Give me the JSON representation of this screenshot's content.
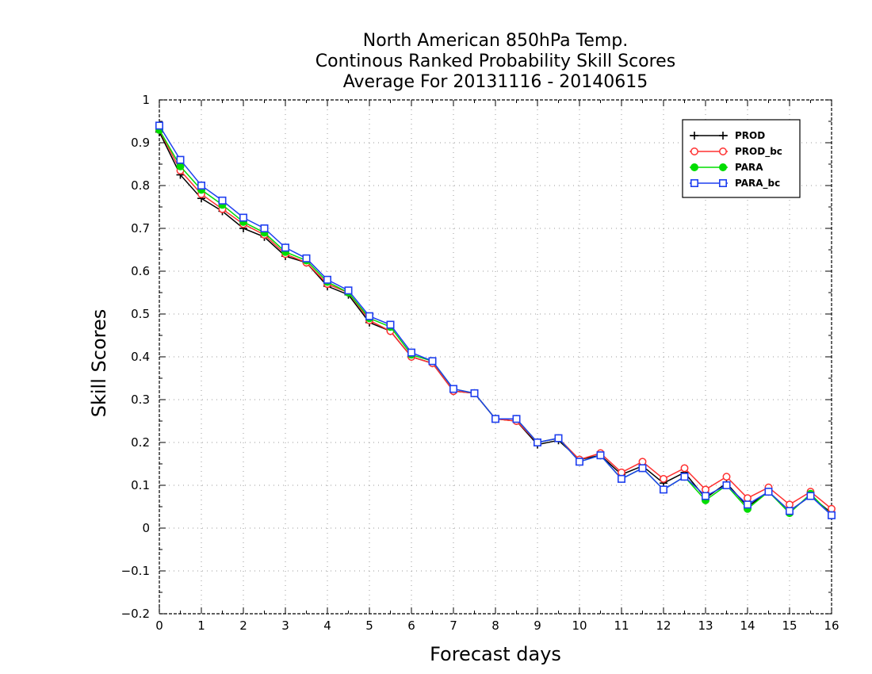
{
  "chart_data": {
    "type": "line",
    "title_lines": [
      "North American 850hPa Temp.",
      "Continous Ranked Probability Skill Scores",
      "Average For 20131116 - 20140615"
    ],
    "xlabel": "Forecast days",
    "ylabel": "Skill Scores",
    "xlim": [
      0,
      16
    ],
    "ylim": [
      -0.2,
      1
    ],
    "x_ticks": [
      0,
      1,
      2,
      3,
      4,
      5,
      6,
      7,
      8,
      9,
      10,
      11,
      12,
      13,
      14,
      15,
      16
    ],
    "y_ticks": [
      -0.2,
      -0.1,
      0,
      0.1,
      0.2,
      0.3,
      0.4,
      0.5,
      0.6,
      0.7,
      0.8,
      0.9,
      1
    ],
    "x_tick_labels": [
      "0",
      "1",
      "2",
      "3",
      "4",
      "5",
      "6",
      "7",
      "8",
      "9",
      "10",
      "11",
      "12",
      "13",
      "14",
      "15",
      "16"
    ],
    "y_tick_labels": [
      "−0.2",
      "−0.1",
      "0",
      "0.1",
      "0.2",
      "0.3",
      "0.4",
      "0.5",
      "0.6",
      "0.7",
      "0.8",
      "0.9",
      "1"
    ],
    "grid": true,
    "legend_position": "top-right",
    "x": [
      0,
      0.5,
      1,
      1.5,
      2,
      2.5,
      3,
      3.5,
      4,
      4.5,
      5,
      5.5,
      6,
      6.5,
      7,
      7.5,
      8,
      8.5,
      9,
      9.5,
      10,
      10.5,
      11,
      11.5,
      12,
      12.5,
      13,
      13.5,
      14,
      14.5,
      15,
      15.5,
      16
    ],
    "series": [
      {
        "name": "PROD",
        "color": "#000000",
        "marker": "plus",
        "values": [
          0.925,
          0.825,
          0.77,
          0.74,
          0.7,
          0.68,
          0.635,
          0.62,
          0.565,
          0.545,
          0.48,
          0.46,
          0.4,
          0.385,
          0.32,
          0.315,
          0.255,
          0.25,
          0.195,
          0.205,
          0.16,
          0.17,
          0.125,
          0.145,
          0.105,
          0.13,
          0.07,
          0.105,
          0.05,
          0.085,
          0.04,
          0.075,
          0.035
        ]
      },
      {
        "name": "PROD_bc",
        "color": "#ff3030",
        "marker": "circle-open",
        "values": [
          0.93,
          0.835,
          0.78,
          0.745,
          0.71,
          0.685,
          0.64,
          0.62,
          0.57,
          0.55,
          0.485,
          0.46,
          0.4,
          0.385,
          0.32,
          0.315,
          0.255,
          0.25,
          0.2,
          0.21,
          0.16,
          0.175,
          0.13,
          0.155,
          0.115,
          0.14,
          0.09,
          0.12,
          0.07,
          0.095,
          0.055,
          0.085,
          0.045
        ]
      },
      {
        "name": "PARA",
        "color": "#00dd00",
        "marker": "circle-filled",
        "values": [
          0.93,
          0.845,
          0.79,
          0.755,
          0.715,
          0.69,
          0.645,
          0.625,
          0.575,
          0.55,
          0.49,
          0.47,
          0.405,
          0.39,
          0.325,
          0.315,
          0.255,
          0.255,
          0.2,
          0.21,
          0.155,
          0.17,
          0.115,
          0.14,
          0.09,
          0.12,
          0.065,
          0.1,
          0.045,
          0.085,
          0.035,
          0.08,
          0.03
        ]
      },
      {
        "name": "PARA_bc",
        "color": "#1f3ff0",
        "marker": "square-open",
        "values": [
          0.94,
          0.86,
          0.8,
          0.765,
          0.725,
          0.7,
          0.655,
          0.63,
          0.58,
          0.555,
          0.495,
          0.475,
          0.41,
          0.39,
          0.325,
          0.315,
          0.255,
          0.255,
          0.2,
          0.21,
          0.155,
          0.17,
          0.115,
          0.14,
          0.09,
          0.12,
          0.075,
          0.1,
          0.055,
          0.085,
          0.04,
          0.075,
          0.03
        ]
      }
    ]
  }
}
